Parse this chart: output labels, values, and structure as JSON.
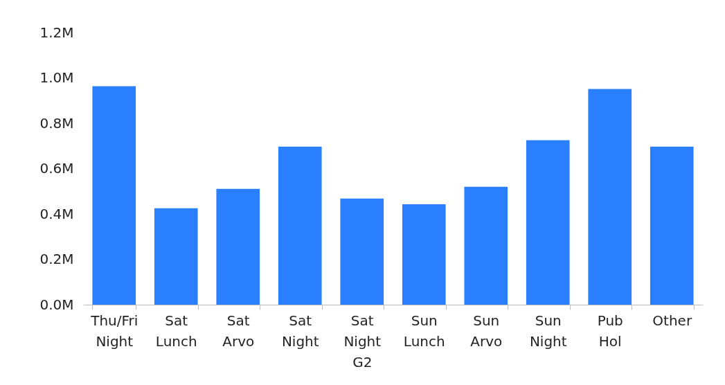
{
  "chart_data": {
    "type": "bar",
    "categories": [
      "Thu/Fri Night",
      "Sat Lunch",
      "Sat Arvo",
      "Sat Night",
      "Sat Night G2",
      "Sun Lunch",
      "Sun Arvo",
      "Sun Night",
      "Pub Hol",
      "Other"
    ],
    "values": [
      963000,
      425000,
      511000,
      697000,
      468000,
      443000,
      520000,
      725000,
      951000,
      697000
    ],
    "color": "#2a7fff",
    "ylim": [
      0,
      1200000
    ],
    "yticks": [
      {
        "value": 0,
        "label": "0.0M"
      },
      {
        "value": 200000,
        "label": "0.2M"
      },
      {
        "value": 400000,
        "label": "0.4M"
      },
      {
        "value": 600000,
        "label": "0.6M"
      },
      {
        "value": 800000,
        "label": "0.8M"
      },
      {
        "value": 1000000,
        "label": "1.0M"
      },
      {
        "value": 1200000,
        "label": "1.2M"
      }
    ],
    "grid": false
  }
}
